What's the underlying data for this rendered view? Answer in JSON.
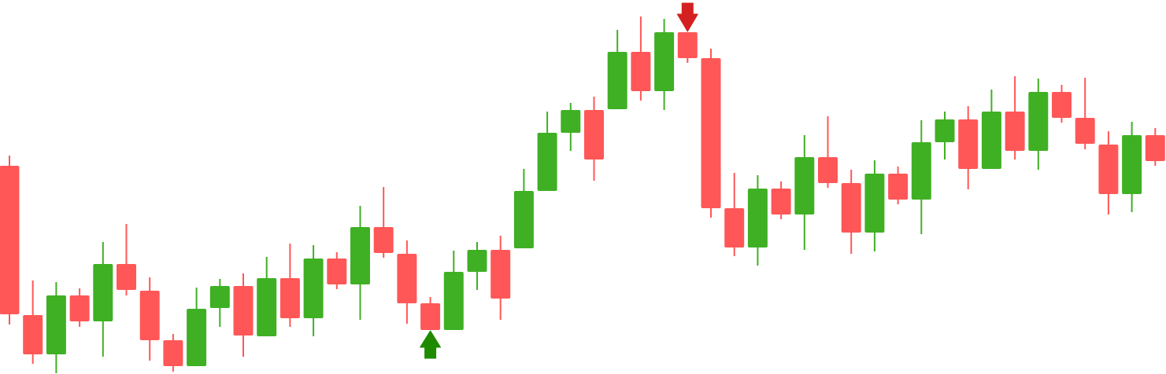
{
  "chart_data": {
    "type": "candlestick",
    "title": "",
    "xlabel": "",
    "ylabel": "",
    "ylim": [
      0,
      476
    ],
    "grid": false,
    "axes_visible": false,
    "colors": {
      "up": "#3fb024",
      "down": "#ff5757",
      "buy_marker": "#1e8a00",
      "sell_marker": "#d42020"
    },
    "candles": [
      {
        "o": 265,
        "h": 278,
        "l": 63,
        "c": 76
      },
      {
        "o": 75,
        "h": 119,
        "l": 13,
        "c": 25
      },
      {
        "o": 25,
        "h": 117,
        "l": 1,
        "c": 100
      },
      {
        "o": 100,
        "h": 109,
        "l": 60,
        "c": 67
      },
      {
        "o": 67,
        "h": 168,
        "l": 22,
        "c": 140
      },
      {
        "o": 140,
        "h": 191,
        "l": 100,
        "c": 107
      },
      {
        "o": 106,
        "h": 123,
        "l": 17,
        "c": 43
      },
      {
        "o": 43,
        "h": 51,
        "l": 3,
        "c": 10
      },
      {
        "o": 10,
        "h": 110,
        "l": 10,
        "c": 83
      },
      {
        "o": 84,
        "h": 121,
        "l": 60,
        "c": 112
      },
      {
        "o": 112,
        "h": 128,
        "l": 22,
        "c": 49
      },
      {
        "o": 48,
        "h": 149,
        "l": 48,
        "c": 122
      },
      {
        "o": 122,
        "h": 166,
        "l": 60,
        "c": 71
      },
      {
        "o": 71,
        "h": 164,
        "l": 48,
        "c": 147
      },
      {
        "o": 147,
        "h": 155,
        "l": 108,
        "c": 114
      },
      {
        "o": 114,
        "h": 214,
        "l": 69,
        "c": 187
      },
      {
        "o": 187,
        "h": 238,
        "l": 148,
        "c": 154
      },
      {
        "o": 153,
        "h": 170,
        "l": 64,
        "c": 90
      },
      {
        "o": 90,
        "h": 98,
        "l": 56,
        "c": 56
      },
      {
        "o": 56,
        "h": 157,
        "l": 56,
        "c": 130
      },
      {
        "o": 130,
        "h": 168,
        "l": 107,
        "c": 158
      },
      {
        "o": 158,
        "h": 176,
        "l": 69,
        "c": 96
      },
      {
        "o": 160,
        "h": 261,
        "l": 160,
        "c": 233
      },
      {
        "o": 233,
        "h": 334,
        "l": 233,
        "c": 307
      },
      {
        "o": 307,
        "h": 345,
        "l": 284,
        "c": 336
      },
      {
        "o": 336,
        "h": 353,
        "l": 246,
        "c": 273
      },
      {
        "o": 337,
        "h": 438,
        "l": 337,
        "c": 410
      },
      {
        "o": 410,
        "h": 455,
        "l": 348,
        "c": 360
      },
      {
        "o": 360,
        "h": 452,
        "l": 336,
        "c": 435
      },
      {
        "o": 435,
        "h": 435,
        "l": 396,
        "c": 402
      },
      {
        "o": 402,
        "h": 414,
        "l": 199,
        "c": 211
      },
      {
        "o": 211,
        "h": 256,
        "l": 150,
        "c": 161
      },
      {
        "o": 161,
        "h": 253,
        "l": 138,
        "c": 236
      },
      {
        "o": 236,
        "h": 245,
        "l": 197,
        "c": 203
      },
      {
        "o": 203,
        "h": 304,
        "l": 158,
        "c": 276
      },
      {
        "o": 276,
        "h": 328,
        "l": 237,
        "c": 243
      },
      {
        "o": 243,
        "h": 260,
        "l": 153,
        "c": 180
      },
      {
        "o": 180,
        "h": 272,
        "l": 156,
        "c": 255
      },
      {
        "o": 255,
        "h": 264,
        "l": 216,
        "c": 222
      },
      {
        "o": 222,
        "h": 323,
        "l": 178,
        "c": 295
      },
      {
        "o": 295,
        "h": 334,
        "l": 273,
        "c": 324
      },
      {
        "o": 324,
        "h": 341,
        "l": 235,
        "c": 261
      },
      {
        "o": 261,
        "h": 362,
        "l": 261,
        "c": 334
      },
      {
        "o": 334,
        "h": 379,
        "l": 273,
        "c": 284
      },
      {
        "o": 284,
        "h": 376,
        "l": 260,
        "c": 359
      },
      {
        "o": 359,
        "h": 368,
        "l": 320,
        "c": 326
      },
      {
        "o": 326,
        "h": 377,
        "l": 286,
        "c": 293
      },
      {
        "o": 292,
        "h": 309,
        "l": 203,
        "c": 229
      },
      {
        "o": 229,
        "h": 321,
        "l": 206,
        "c": 304
      },
      {
        "o": 304,
        "h": 313,
        "l": 265,
        "c": 271
      }
    ],
    "markers": [
      {
        "candle_index": 18,
        "type": "buy",
        "shape": "arrow-up",
        "position": "below"
      },
      {
        "candle_index": 29,
        "type": "sell",
        "shape": "arrow-down",
        "position": "above"
      }
    ]
  }
}
